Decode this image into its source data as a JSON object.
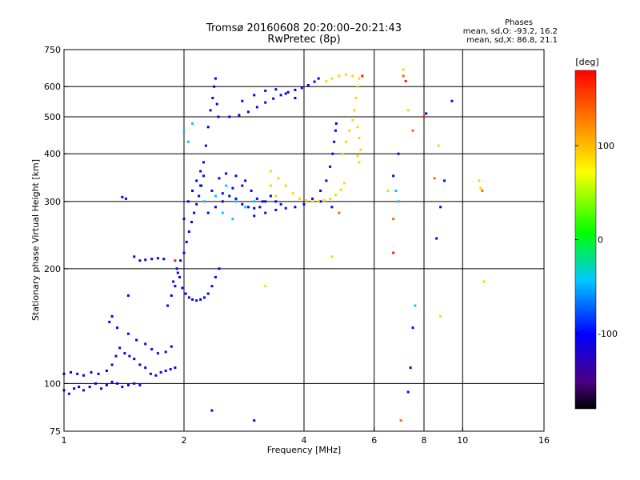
{
  "header": {
    "title": "Tromsø 20160608 20:20:00–20:21:43",
    "subtitle": "RwPretec (8p)"
  },
  "info_box": {
    "heading": "Phases",
    "o_line": "mean, sd,O: -93.2, 16.2",
    "x_line": "mean, sd,X: 86.8, 21.1"
  },
  "colorbar": {
    "unit": "[deg]",
    "range": [
      -180,
      180
    ],
    "ticks": [
      {
        "value": 100,
        "label": "100"
      },
      {
        "value": 0,
        "label": "0"
      },
      {
        "value": -100,
        "label": "-100"
      }
    ]
  },
  "chart_data": {
    "type": "scatter",
    "title": "Tromsø 20160608 20:20:00–20:21:43",
    "subtitle": "RwPretec (8p)",
    "xlabel": "Frequency [MHz]",
    "ylabel": "Stationary phase Virtual Height [km]",
    "x_scale": "log",
    "y_scale": "log",
    "xlim": [
      1,
      16
    ],
    "ylim": [
      75,
      750
    ],
    "x_ticks": [
      {
        "value": 1,
        "label": "1"
      },
      {
        "value": 2,
        "label": "2"
      },
      {
        "value": 4,
        "label": "4"
      },
      {
        "value": 6,
        "label": "6"
      },
      {
        "value": 8,
        "label": "8"
      },
      {
        "value": 10,
        "label": "10"
      },
      {
        "value": 16,
        "label": "16"
      }
    ],
    "y_ticks": [
      {
        "value": 75,
        "label": "75"
      },
      {
        "value": 100,
        "label": "100"
      },
      {
        "value": 200,
        "label": "200"
      },
      {
        "value": 300,
        "label": "300"
      },
      {
        "value": 400,
        "label": "400"
      },
      {
        "value": 500,
        "label": "500"
      },
      {
        "value": 600,
        "label": "600"
      },
      {
        "value": 750,
        "label": "750"
      }
    ],
    "x_gridlines": [
      2,
      4,
      6,
      8,
      10
    ],
    "y_gridlines": [
      100,
      200,
      300,
      400,
      500,
      600
    ],
    "grid": true,
    "color_variable": "phase [deg]",
    "series": [
      {
        "mode": "O",
        "phase": -100,
        "points": [
          [
            1.0,
            96
          ],
          [
            1.03,
            94
          ],
          [
            1.06,
            97
          ],
          [
            1.09,
            98
          ],
          [
            1.12,
            96
          ],
          [
            1.16,
            98
          ],
          [
            1.2,
            100
          ],
          [
            1.24,
            97
          ],
          [
            1.28,
            99
          ],
          [
            1.32,
            101
          ],
          [
            1.36,
            100
          ],
          [
            1.4,
            98
          ],
          [
            1.45,
            99
          ],
          [
            1.5,
            100
          ],
          [
            1.55,
            99
          ],
          [
            1.0,
            106
          ],
          [
            1.04,
            107
          ],
          [
            1.08,
            106
          ],
          [
            1.12,
            105
          ],
          [
            1.17,
            107
          ],
          [
            1.22,
            106
          ],
          [
            1.28,
            108
          ],
          [
            1.32,
            112
          ],
          [
            1.35,
            118
          ],
          [
            1.38,
            124
          ],
          [
            1.42,
            120
          ],
          [
            1.46,
            118
          ],
          [
            1.5,
            116
          ],
          [
            1.55,
            112
          ],
          [
            1.6,
            110
          ],
          [
            1.65,
            106
          ],
          [
            1.7,
            105
          ],
          [
            1.75,
            107
          ],
          [
            1.8,
            108
          ],
          [
            1.85,
            109
          ],
          [
            1.9,
            110
          ],
          [
            1.3,
            145
          ],
          [
            1.32,
            150
          ],
          [
            1.36,
            140
          ],
          [
            1.45,
            135
          ],
          [
            1.52,
            130
          ],
          [
            1.6,
            127
          ],
          [
            1.66,
            123
          ],
          [
            1.72,
            120
          ],
          [
            1.8,
            121
          ],
          [
            1.86,
            125
          ],
          [
            1.45,
            170
          ],
          [
            1.5,
            215
          ],
          [
            1.55,
            210
          ],
          [
            1.6,
            211
          ],
          [
            1.66,
            212
          ],
          [
            1.72,
            213
          ],
          [
            1.78,
            212
          ],
          [
            1.4,
            308
          ],
          [
            1.43,
            305
          ],
          [
            1.82,
            160
          ],
          [
            1.86,
            170
          ],
          [
            1.9,
            180
          ],
          [
            1.93,
            195
          ],
          [
            1.96,
            210
          ],
          [
            2.0,
            220
          ],
          [
            2.03,
            235
          ],
          [
            2.06,
            250
          ],
          [
            2.09,
            265
          ],
          [
            2.12,
            280
          ],
          [
            2.15,
            295
          ],
          [
            2.18,
            310
          ],
          [
            2.21,
            330
          ],
          [
            2.24,
            350
          ],
          [
            1.88,
            185
          ],
          [
            1.92,
            200
          ],
          [
            1.95,
            190
          ],
          [
            1.98,
            178
          ],
          [
            2.02,
            172
          ],
          [
            2.06,
            168
          ],
          [
            2.1,
            166
          ],
          [
            2.15,
            165
          ],
          [
            2.2,
            166
          ],
          [
            2.25,
            168
          ],
          [
            2.3,
            172
          ],
          [
            2.35,
            180
          ],
          [
            2.4,
            190
          ],
          [
            2.45,
            200
          ],
          [
            2.0,
            270
          ],
          [
            2.05,
            300
          ],
          [
            2.1,
            320
          ],
          [
            2.15,
            340
          ],
          [
            2.2,
            360
          ],
          [
            2.24,
            380
          ],
          [
            2.27,
            420
          ],
          [
            2.3,
            470
          ],
          [
            2.33,
            520
          ],
          [
            2.36,
            560
          ],
          [
            2.38,
            600
          ],
          [
            2.4,
            630
          ],
          [
            2.42,
            540
          ],
          [
            2.44,
            500
          ],
          [
            2.3,
            280
          ],
          [
            2.4,
            290
          ],
          [
            2.5,
            300
          ],
          [
            2.6,
            310
          ],
          [
            2.7,
            305
          ],
          [
            2.8,
            295
          ],
          [
            2.9,
            290
          ],
          [
            3.0,
            288
          ],
          [
            3.1,
            290
          ],
          [
            3.2,
            300
          ],
          [
            3.3,
            310
          ],
          [
            3.4,
            300
          ],
          [
            3.5,
            295
          ],
          [
            2.2,
            330
          ],
          [
            2.35,
            320
          ],
          [
            2.5,
            315
          ],
          [
            2.65,
            325
          ],
          [
            2.8,
            330
          ],
          [
            2.95,
            320
          ],
          [
            3.05,
            305
          ],
          [
            3.15,
            300
          ],
          [
            2.45,
            345
          ],
          [
            2.55,
            355
          ],
          [
            2.7,
            350
          ],
          [
            2.85,
            340
          ],
          [
            3.0,
            275
          ],
          [
            3.2,
            280
          ],
          [
            3.4,
            285
          ],
          [
            3.6,
            288
          ],
          [
            3.8,
            290
          ],
          [
            4.0,
            295
          ],
          [
            4.2,
            305
          ],
          [
            4.4,
            320
          ],
          [
            4.55,
            340
          ],
          [
            4.65,
            370
          ],
          [
            4.72,
            400
          ],
          [
            4.76,
            430
          ],
          [
            4.8,
            460
          ],
          [
            4.82,
            480
          ],
          [
            2.6,
            500
          ],
          [
            2.75,
            505
          ],
          [
            2.9,
            515
          ],
          [
            3.05,
            530
          ],
          [
            3.2,
            545
          ],
          [
            3.35,
            558
          ],
          [
            3.5,
            570
          ],
          [
            3.65,
            580
          ],
          [
            3.8,
            588
          ],
          [
            3.95,
            595
          ],
          [
            4.1,
            605
          ],
          [
            4.25,
            618
          ],
          [
            4.35,
            630
          ],
          [
            2.8,
            550
          ],
          [
            3.0,
            570
          ],
          [
            3.2,
            585
          ],
          [
            3.4,
            590
          ],
          [
            3.6,
            575
          ],
          [
            3.8,
            560
          ],
          [
            2.35,
            85
          ],
          [
            3.0,
            80
          ],
          [
            6.7,
            350
          ],
          [
            6.9,
            400
          ],
          [
            7.3,
            95
          ],
          [
            7.4,
            110
          ],
          [
            7.5,
            140
          ],
          [
            8.1,
            510
          ],
          [
            8.6,
            240
          ],
          [
            8.8,
            290
          ],
          [
            9.0,
            340
          ],
          [
            9.4,
            550
          ],
          [
            4.7,
            290
          ],
          [
            4.4,
            300
          ]
        ]
      },
      {
        "mode": "O-cyan",
        "phase": -45,
        "points": [
          [
            2.05,
            430
          ],
          [
            2.1,
            480
          ],
          [
            2.25,
            300
          ],
          [
            2.4,
            310
          ],
          [
            2.55,
            330
          ],
          [
            2.7,
            300
          ],
          [
            2.85,
            290
          ],
          [
            3.0,
            300
          ],
          [
            2.5,
            280
          ],
          [
            2.65,
            270
          ],
          [
            6.8,
            320
          ],
          [
            6.9,
            300
          ],
          [
            7.6,
            160
          ],
          [
            2.0,
            460
          ]
        ]
      },
      {
        "mode": "X",
        "phase": 90,
        "points": [
          [
            3.3,
            360
          ],
          [
            3.45,
            345
          ],
          [
            3.6,
            330
          ],
          [
            3.75,
            315
          ],
          [
            3.9,
            305
          ],
          [
            4.05,
            302
          ],
          [
            4.2,
            300
          ],
          [
            4.35,
            300
          ],
          [
            4.5,
            302
          ],
          [
            4.65,
            305
          ],
          [
            4.8,
            312
          ],
          [
            4.95,
            322
          ],
          [
            5.05,
            335
          ],
          [
            5.0,
            400
          ],
          [
            5.1,
            430
          ],
          [
            5.2,
            460
          ],
          [
            5.3,
            490
          ],
          [
            5.35,
            520
          ],
          [
            5.4,
            560
          ],
          [
            5.45,
            600
          ],
          [
            5.5,
            630
          ],
          [
            5.3,
            640
          ],
          [
            5.1,
            645
          ],
          [
            4.9,
            640
          ],
          [
            4.7,
            630
          ],
          [
            4.55,
            620
          ],
          [
            5.45,
            470
          ],
          [
            5.5,
            440
          ],
          [
            5.55,
            410
          ],
          [
            5.5,
            380
          ],
          [
            5.45,
            395
          ],
          [
            3.2,
            180
          ],
          [
            4.7,
            215
          ],
          [
            6.5,
            320
          ],
          [
            7.3,
            520
          ],
          [
            8.7,
            420
          ],
          [
            8.8,
            150
          ],
          [
            11.0,
            340
          ],
          [
            11.1,
            325
          ],
          [
            11.3,
            185
          ],
          [
            7.1,
            665
          ],
          [
            3.3,
            330
          ],
          [
            3.4,
            310
          ]
        ]
      },
      {
        "mode": "X-orange",
        "phase": 140,
        "points": [
          [
            7.1,
            640
          ],
          [
            7.5,
            460
          ],
          [
            6.7,
            270
          ],
          [
            7.0,
            80
          ],
          [
            8.5,
            345
          ],
          [
            4.9,
            280
          ],
          [
            11.2,
            320
          ]
        ]
      },
      {
        "mode": "X-red",
        "phase": 170,
        "points": [
          [
            7.2,
            620
          ],
          [
            8.0,
            500
          ],
          [
            6.7,
            220
          ],
          [
            1.9,
            210
          ],
          [
            5.6,
            640
          ]
        ]
      }
    ]
  }
}
